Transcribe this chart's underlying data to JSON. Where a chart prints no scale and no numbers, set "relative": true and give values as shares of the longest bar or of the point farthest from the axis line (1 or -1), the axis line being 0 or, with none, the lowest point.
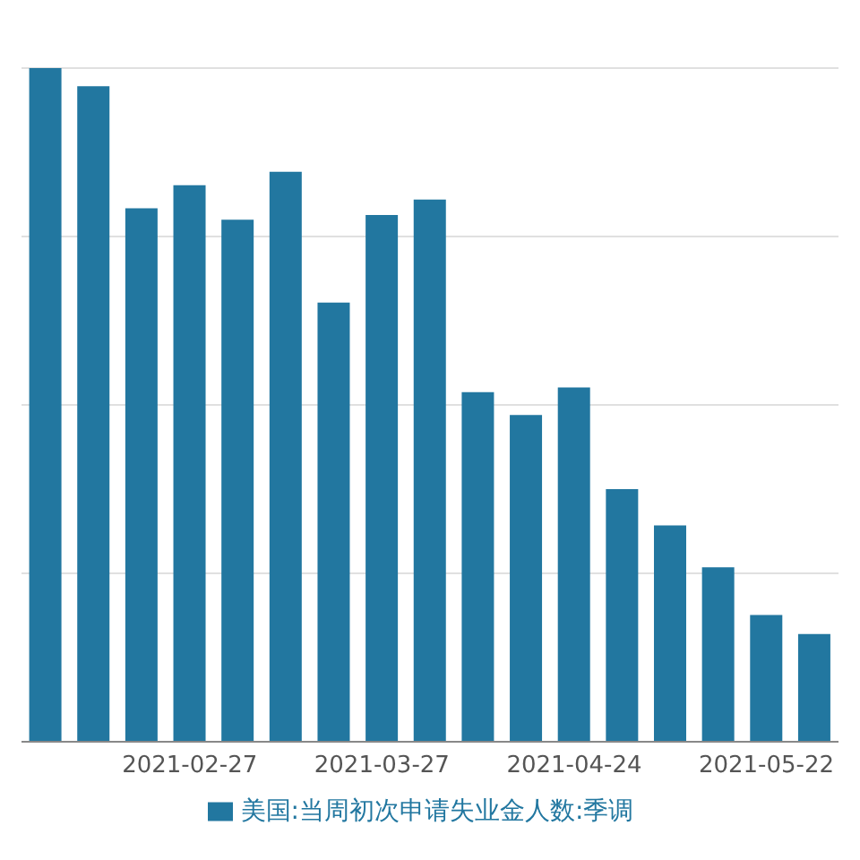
{
  "chart_data": {
    "type": "bar",
    "relative": true,
    "categories": [
      null,
      null,
      null,
      "2021-02-27",
      null,
      null,
      null,
      "2021-03-27",
      null,
      null,
      null,
      "2021-04-24",
      null,
      null,
      null,
      "2021-05-22",
      null
    ],
    "series": [
      {
        "name": "美国:当周初次申请失业金人数:季调",
        "color": "#2277a0",
        "values": [
          1,
          0.973,
          0.792,
          0.826,
          0.775,
          0.846,
          0.652,
          0.782,
          0.805,
          0.519,
          0.485,
          0.526,
          0.375,
          0.321,
          0.259,
          0.188,
          0.16
        ]
      }
    ],
    "grid": "y",
    "legend": "bottom"
  }
}
